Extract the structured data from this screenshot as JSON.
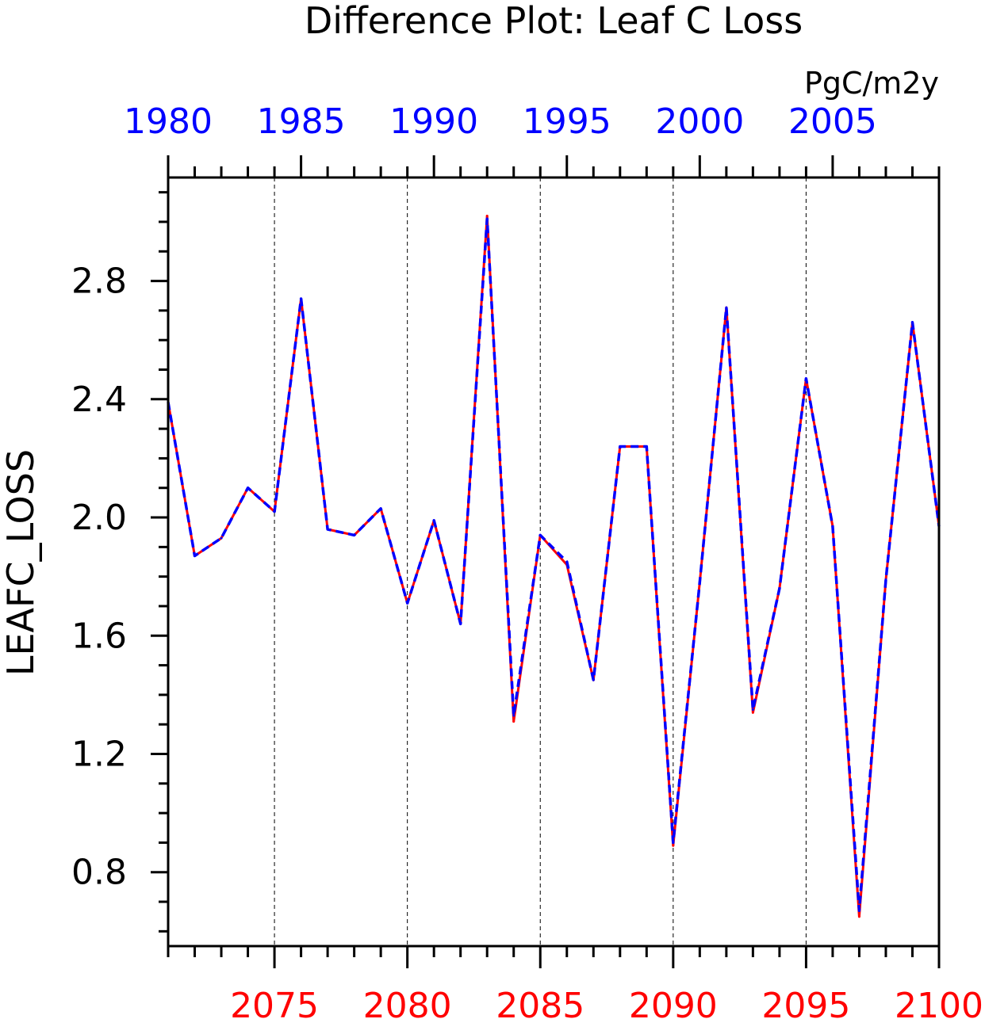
{
  "chart_data": {
    "type": "line",
    "title": "Difference Plot: Leaf C Loss",
    "units": "PgC/m2y",
    "ylabel": "LEAFC_LOSS",
    "ylim": [
      0.55,
      3.15
    ],
    "yticks": [
      0.8,
      1.2,
      1.6,
      2.0,
      2.4,
      2.8
    ],
    "ytick_labels": [
      "0.8",
      "1.2",
      "1.6",
      "2.0",
      "2.4",
      "2.8"
    ],
    "y_minor_step": 0.1,
    "grid": "vertical dashed lines at bottom-axis major ticks",
    "bottom_axis": {
      "range": [
        2071,
        2100
      ],
      "ticks": [
        2075,
        2080,
        2085,
        2090,
        2095,
        2100
      ],
      "tick_labels": [
        "2075",
        "2080",
        "2085",
        "2090",
        "2095",
        "2100"
      ],
      "color": "#ff0000"
    },
    "top_axis": {
      "range": [
        1980,
        2009
      ],
      "ticks": [
        1980,
        1985,
        1990,
        1995,
        2000,
        2005
      ],
      "tick_labels": [
        "1980",
        "1985",
        "1990",
        "1995",
        "2000",
        "2005"
      ],
      "color": "#0000ff"
    },
    "series": [
      {
        "axis": "bottom",
        "color": "#ff0000",
        "style": "solid",
        "x": [
          2071,
          2072,
          2073,
          2074,
          2075,
          2076,
          2077,
          2078,
          2079,
          2080,
          2081,
          2082,
          2083,
          2084,
          2085,
          2086,
          2087,
          2088,
          2089,
          2090,
          2091,
          2092,
          2093,
          2094,
          2095,
          2096,
          2097,
          2098,
          2099,
          2100
        ],
        "values": [
          2.39,
          1.87,
          1.93,
          2.1,
          2.02,
          2.74,
          1.96,
          1.94,
          2.03,
          1.71,
          1.99,
          1.64,
          3.02,
          1.31,
          1.94,
          1.84,
          1.45,
          2.24,
          2.24,
          0.89,
          1.78,
          2.71,
          1.34,
          1.76,
          2.47,
          1.97,
          0.65,
          1.79,
          2.66,
          1.97
        ]
      },
      {
        "axis": "top",
        "color": "#0000ff",
        "style": "dashed",
        "x": [
          1980,
          1981,
          1982,
          1983,
          1984,
          1985,
          1986,
          1987,
          1988,
          1989,
          1990,
          1991,
          1992,
          1993,
          1994,
          1995,
          1996,
          1997,
          1998,
          1999,
          2000,
          2001,
          2002,
          2003,
          2004,
          2005,
          2006,
          2007,
          2008,
          2009
        ],
        "values": [
          2.39,
          1.87,
          1.93,
          2.1,
          2.02,
          2.74,
          1.96,
          1.94,
          2.03,
          1.71,
          1.99,
          1.64,
          3.01,
          1.33,
          1.94,
          1.85,
          1.45,
          2.24,
          2.24,
          0.9,
          1.78,
          2.71,
          1.35,
          1.76,
          2.47,
          1.97,
          0.67,
          1.79,
          2.66,
          1.97
        ]
      }
    ]
  }
}
